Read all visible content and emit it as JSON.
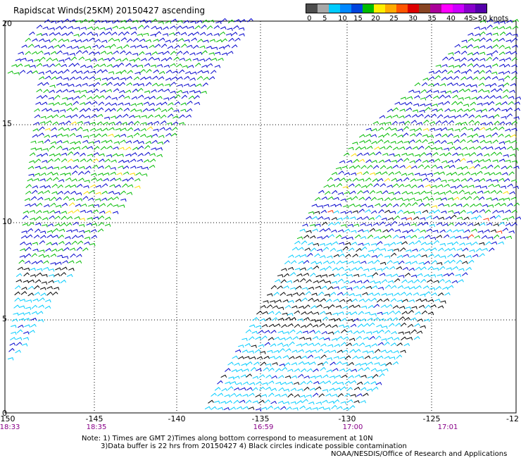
{
  "title": "Rapidscat Winds(25KM) 20150427 ascending",
  "legend": {
    "labels": [
      "0",
      "5",
      "10",
      "15",
      "20",
      "25",
      "30",
      "35",
      "40",
      "45",
      ">50 knots"
    ],
    "colors": [
      "#4d4d4d",
      "#a8a8a8",
      "#00ccff",
      "#0088ff",
      "#0044dd",
      "#00bb00",
      "#ffee00",
      "#ffaa00",
      "#ff5500",
      "#dd0000",
      "#884422",
      "#aa0099",
      "#ff00ff",
      "#cc00ff",
      "#8800cc",
      "#5500aa"
    ]
  },
  "axes": {
    "x_ticks": [
      "-150",
      "-145",
      "-140",
      "-135",
      "-130",
      "-125",
      "-12"
    ],
    "y_ticks": [
      "20",
      "15",
      "10",
      "5",
      "0"
    ],
    "time_labels": [
      "18:33",
      "18:35",
      "16:59",
      "17:00",
      "17:01"
    ]
  },
  "wind_colors": {
    "black": "#000000",
    "cyan": "#00ccff",
    "blue": "#0000cc",
    "green": "#00bb00",
    "yellow": "#ffdd00",
    "red": "#ff3300"
  },
  "notes": {
    "line1": "Note: 1) Times are GMT 2)Times along bottom correspond to measurement at 10N",
    "line2": "3)Data buffer is 22 hrs from 20150427 4) Black circles indicate possible contamination",
    "line3": "NOAA/NESDIS/Office of Research and Applications"
  }
}
